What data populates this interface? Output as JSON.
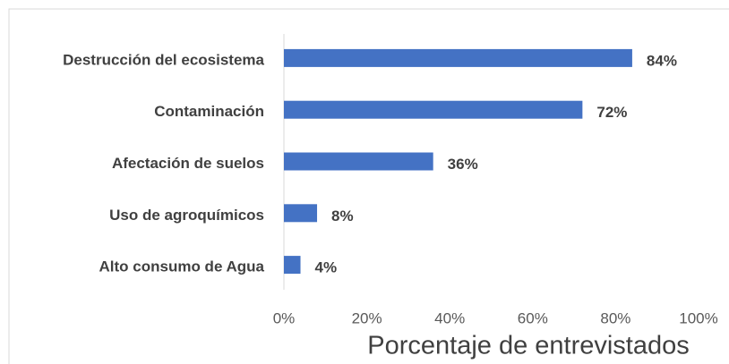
{
  "chart_data": {
    "type": "bar",
    "orientation": "horizontal",
    "categories": [
      "Destrucción del ecosistema",
      "Contaminación",
      "Afectación de suelos",
      "Uso de agroquímicos",
      "Alto consumo de Agua"
    ],
    "values": [
      84,
      72,
      36,
      8,
      4
    ],
    "value_labels": [
      "84%",
      "72%",
      "36%",
      "8%",
      "4%"
    ],
    "color": "#4472c4",
    "xlabel": "Porcentaje de entrevistados",
    "xlim": [
      0,
      100
    ],
    "xticks": [
      {
        "value": 0,
        "label": "0%"
      },
      {
        "value": 20,
        "label": "20%"
      },
      {
        "value": 40,
        "label": "40%"
      },
      {
        "value": 60,
        "label": "60%"
      },
      {
        "value": 80,
        "label": "80%"
      },
      {
        "value": 100,
        "label": "100%"
      }
    ],
    "grid": false
  }
}
